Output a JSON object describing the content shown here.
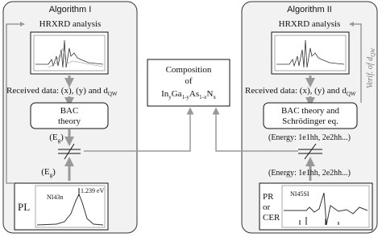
{
  "left": {
    "title": "Algorithm I",
    "xrd": "HRXRD analysis",
    "received": [
      "Received data: (x), (y) and d",
      "QW"
    ],
    "theory": [
      "BAC",
      "theory"
    ],
    "eg_top": [
      "(E",
      "g",
      ")"
    ],
    "eg_bottom": [
      "(E",
      "g",
      ")"
    ],
    "method": "PL",
    "sample": "NI43n",
    "peak": "1.239 eV"
  },
  "center": {
    "line1": "Composition",
    "line2": "of",
    "formula": [
      "In",
      "y",
      "Ga",
      "1-y",
      "As",
      "1-x",
      "N",
      "x"
    ]
  },
  "right": {
    "title": "Algorithm II",
    "xrd": "HRXRD analysis",
    "received": [
      "Received data: (x), (y) and d",
      "QW"
    ],
    "theory": [
      "BAC theory and",
      "Schrödinger eq."
    ],
    "energy_top": "(Energy: 1e1hh, 2e2hh...)",
    "energy_bottom": "(Energy: 1e1hh, 2e2hh...)",
    "method": [
      "PR",
      "or",
      "CER"
    ],
    "sample": "NI45SI",
    "verif": [
      "Verif. of d",
      "QW"
    ]
  }
}
